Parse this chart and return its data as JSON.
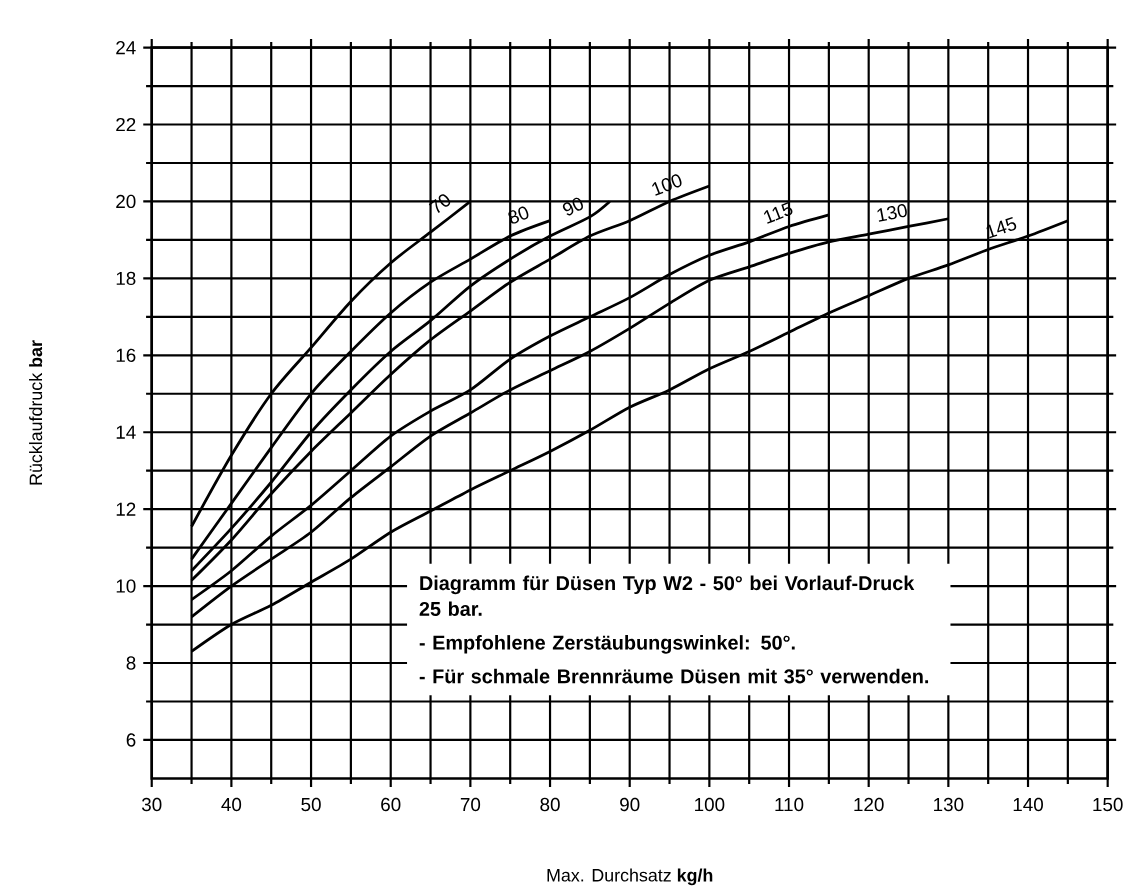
{
  "chart_data": {
    "type": "line",
    "xlabel": "Max. Durchsatz **kg/h**",
    "ylabel": "Rücklaufdruck **bar**",
    "xlim": [
      30,
      150
    ],
    "xticks": [
      30,
      40,
      50,
      60,
      70,
      80,
      90,
      100,
      110,
      120,
      130,
      140,
      150
    ],
    "ylim": [
      5,
      24
    ],
    "yticks": [
      6,
      8,
      10,
      12,
      14,
      16,
      18,
      20,
      22,
      24
    ],
    "grid": true,
    "marker": "none",
    "line_style": "solid",
    "annotations": [
      "Diagramm für Düsen Typ W2 - 50° bei Vorlauf-Druck 25 bar.",
      "- Empfohlene Zerstäubungswinkel: 50°.",
      "- Für schmale Brennräume Düsen mit 35° verwenden."
    ],
    "series": [
      {
        "name": "70",
        "color": "#000000",
        "x": [
          35,
          40,
          45,
          50,
          55,
          60,
          65,
          70
        ],
        "values": [
          11.55,
          13.4,
          15.0,
          16.2,
          17.4,
          18.4,
          19.2,
          20.0
        ]
      },
      {
        "name": "80",
        "color": "#000000",
        "x": [
          35,
          40,
          45,
          50,
          55,
          60,
          65,
          70,
          75,
          80
        ],
        "values": [
          10.7,
          12.15,
          13.6,
          15.0,
          16.1,
          17.1,
          17.9,
          18.5,
          19.1,
          19.5
        ]
      },
      {
        "name": "90",
        "color": "#000000",
        "x": [
          35,
          40,
          45,
          50,
          55,
          60,
          65,
          70,
          75,
          80,
          85,
          87.5
        ],
        "values": [
          10.4,
          11.5,
          12.7,
          14.0,
          15.1,
          16.1,
          16.9,
          17.8,
          18.5,
          19.1,
          19.6,
          20.0
        ]
      },
      {
        "name": "100",
        "color": "#000000",
        "x": [
          35,
          40,
          45,
          50,
          55,
          60,
          65,
          70,
          75,
          80,
          85,
          90,
          95,
          100
        ],
        "values": [
          10.15,
          11.2,
          12.4,
          13.5,
          14.5,
          15.5,
          16.4,
          17.15,
          17.9,
          18.5,
          19.1,
          19.5,
          20.0,
          20.4
        ]
      },
      {
        "name": "115",
        "color": "#000000",
        "x": [
          35,
          40,
          45,
          50,
          55,
          60,
          65,
          70,
          75,
          80,
          85,
          90,
          95,
          100,
          105,
          110,
          115
        ],
        "values": [
          9.65,
          10.4,
          11.3,
          12.1,
          13.0,
          13.9,
          14.55,
          15.1,
          15.9,
          16.5,
          17.0,
          17.5,
          18.1,
          18.6,
          18.95,
          19.35,
          19.65
        ]
      },
      {
        "name": "130",
        "color": "#000000",
        "x": [
          35,
          40,
          45,
          50,
          55,
          60,
          65,
          70,
          75,
          80,
          85,
          90,
          95,
          100,
          105,
          110,
          115,
          120,
          125,
          130
        ],
        "values": [
          9.2,
          10.0,
          10.7,
          11.4,
          12.3,
          13.1,
          13.9,
          14.5,
          15.1,
          15.6,
          16.1,
          16.7,
          17.35,
          17.95,
          18.3,
          18.65,
          18.95,
          19.15,
          19.35,
          19.55
        ]
      },
      {
        "name": "145",
        "color": "#000000",
        "x": [
          35,
          40,
          45,
          50,
          55,
          60,
          65,
          70,
          75,
          80,
          85,
          90,
          95,
          100,
          105,
          110,
          115,
          120,
          125,
          130,
          135,
          140,
          145
        ],
        "values": [
          8.3,
          9.0,
          9.5,
          10.1,
          10.7,
          11.4,
          11.95,
          12.5,
          13.0,
          13.5,
          14.05,
          14.65,
          15.1,
          15.65,
          16.1,
          16.6,
          17.1,
          17.55,
          18.0,
          18.35,
          18.75,
          19.1,
          19.5
        ]
      }
    ]
  }
}
